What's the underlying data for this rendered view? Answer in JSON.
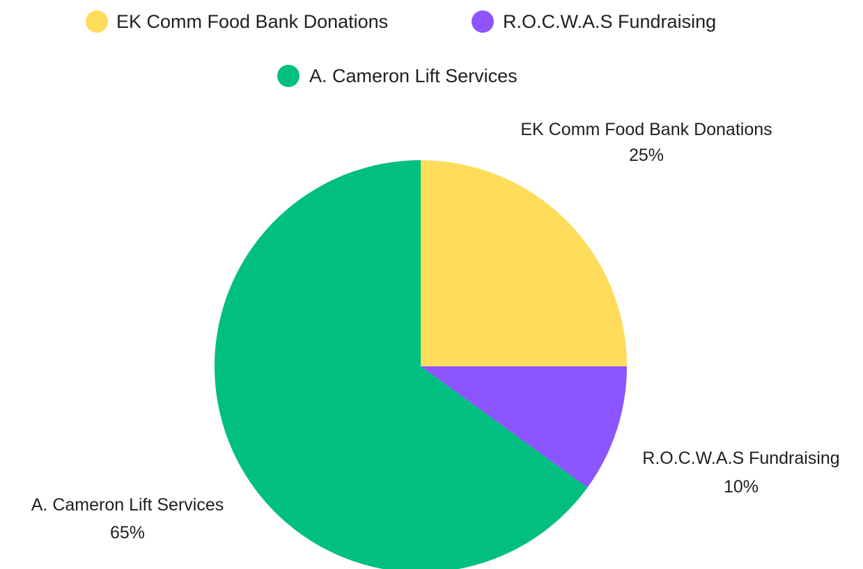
{
  "chart_data": {
    "type": "pie",
    "slices": [
      {
        "label": "EK Comm Food Bank Donations",
        "value": 25,
        "value_label": "25%",
        "color": "#FFDC5A"
      },
      {
        "label": "R.O.C.W.A.S Fundraising",
        "value": 10,
        "value_label": "10%",
        "color": "#8C55FF"
      },
      {
        "label": "A. Cameron Lift Services",
        "value": 65,
        "value_label": "65%",
        "color": "#00BF80"
      }
    ],
    "legend": {
      "placement": "top",
      "entries": [
        "EK Comm Food Bank Donations",
        "R.O.C.W.A.S Fundraising",
        "A. Cameron Lift Services"
      ]
    },
    "start_angle": "12 o'clock",
    "direction": "clockwise"
  }
}
